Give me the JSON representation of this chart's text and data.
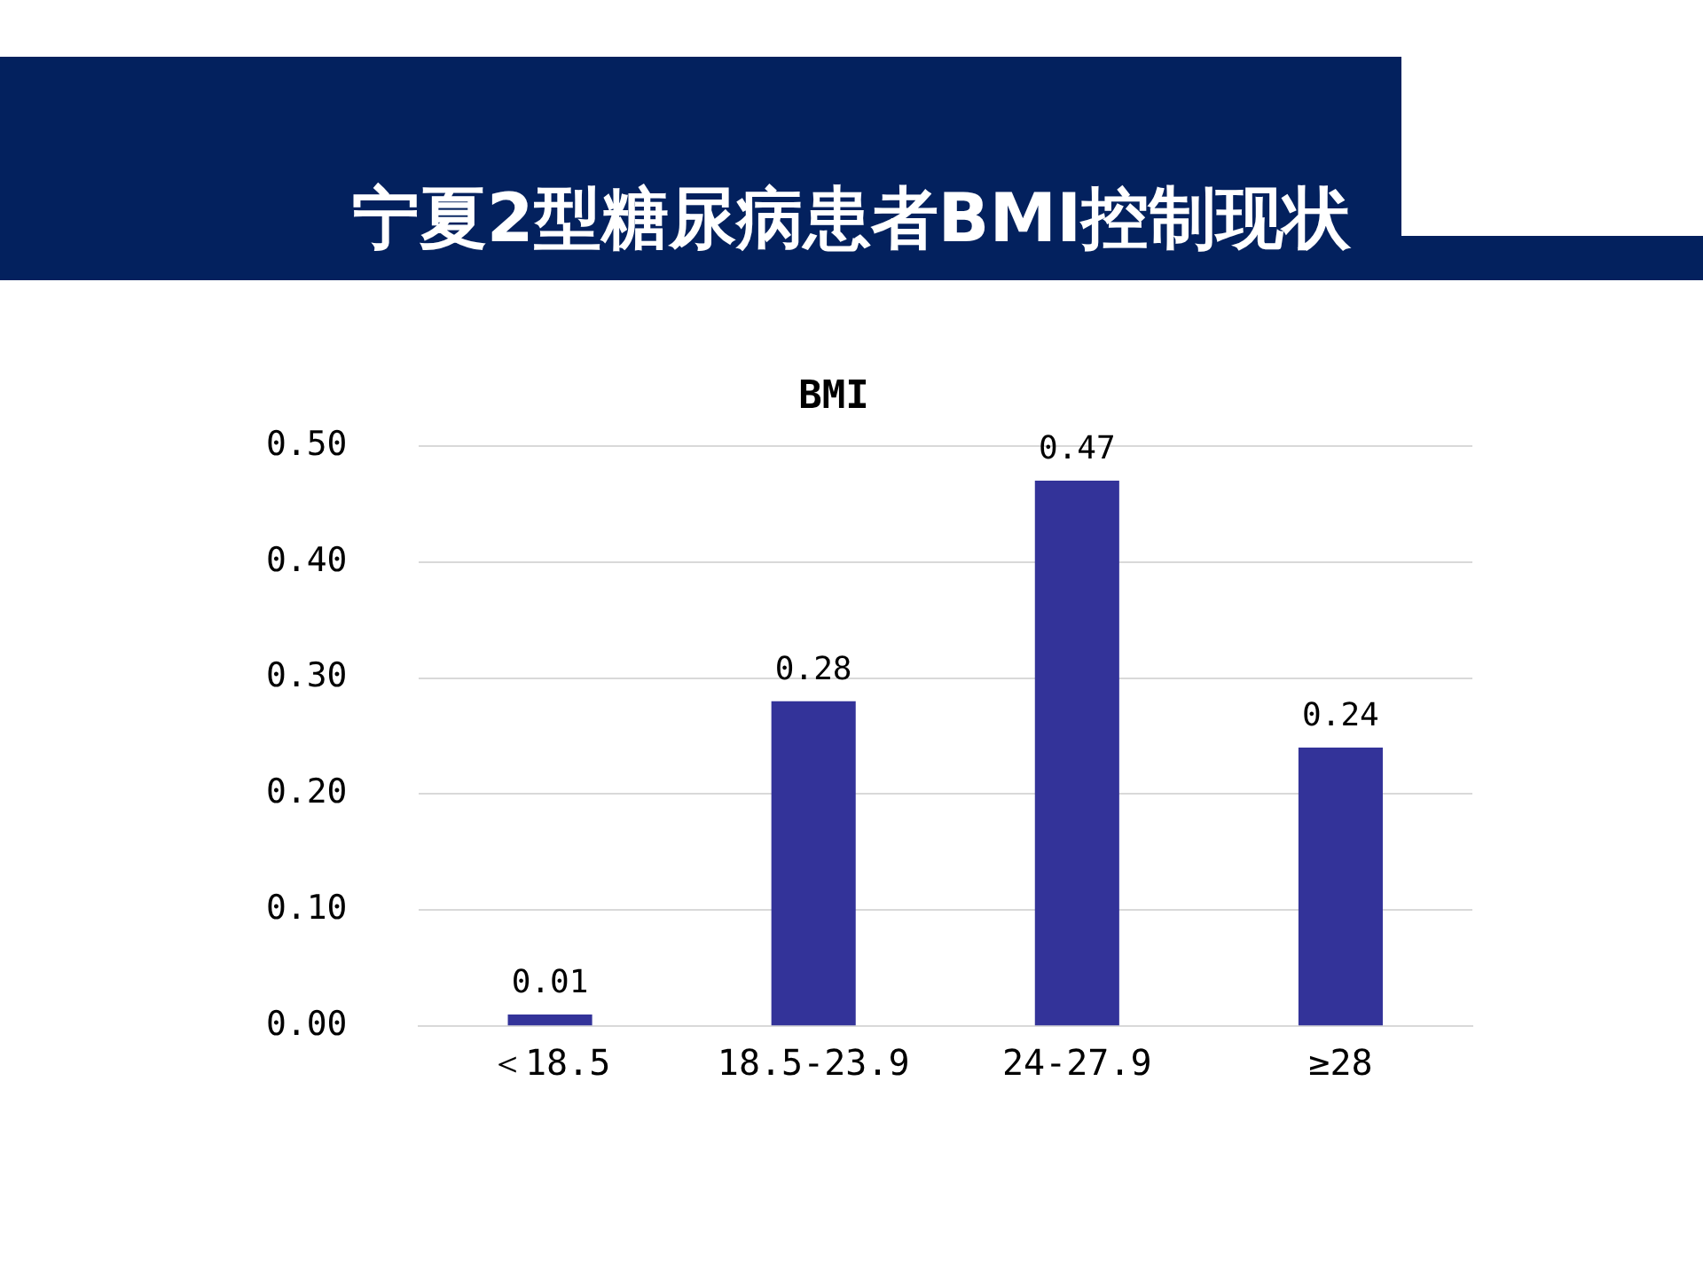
{
  "chart_data": {
    "type": "bar",
    "title": "宁夏2型糖尿病患者BMI控制现状",
    "subtitle": "BMI",
    "categories": [
      "＜18.5",
      "18.5-23.9",
      "24-27.9",
      "≥28"
    ],
    "values": [
      0.01,
      0.28,
      0.47,
      0.24
    ],
    "color": "#333399",
    "ylim": [
      0,
      0.5
    ],
    "yticks": [
      {
        "value": 0,
        "label": "0.00"
      },
      {
        "value": 0.1,
        "label": "0.10"
      },
      {
        "value": 0.2,
        "label": "0.20"
      },
      {
        "value": 0.3,
        "label": "0.30"
      },
      {
        "value": 0.4,
        "label": "0.40"
      },
      {
        "value": 0.5,
        "label": "0.50"
      }
    ],
    "grid": "y",
    "data_labels": true,
    "legend": false
  }
}
